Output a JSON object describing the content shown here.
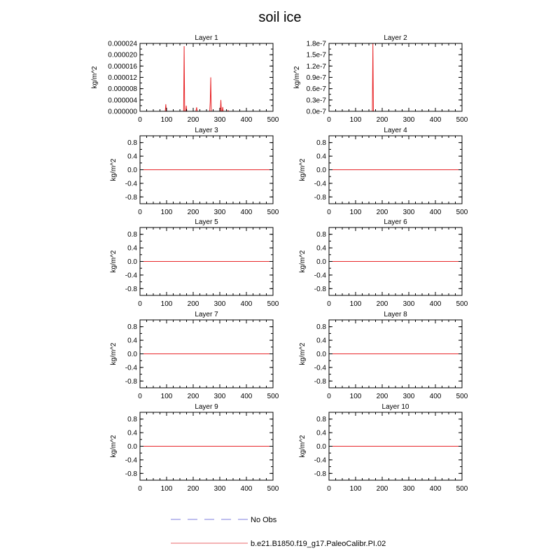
{
  "title": "soil ice",
  "ylabel": "kg/m^2",
  "legend": {
    "obs": "No Obs",
    "model": "b.e21.B1850.f19_g17.PaleoCalibr.PI.02"
  },
  "colors": {
    "model": "#e8272a",
    "obs": "#a8a8e8",
    "axis": "#000000"
  },
  "chart_data": [
    {
      "type": "line",
      "title": "Layer 1",
      "ylabel": "kg/m^2",
      "xlim": [
        0,
        500
      ],
      "ylim": [
        0,
        2.4e-05
      ],
      "xticks": [
        "0",
        "100",
        "200",
        "300",
        "400",
        "500"
      ],
      "yticks": [
        "0.000000",
        "0.000004",
        "0.000008",
        "0.000012",
        "0.000016",
        "0.000020",
        "0.000024"
      ],
      "series": [
        {
          "name": "b.e21.B1850.f19_g17.PaleoCalibr.PI.02",
          "x": [
            0,
            95,
            97,
            99,
            101,
            160,
            164,
            166,
            168,
            172,
            174,
            176,
            210,
            213,
            215,
            262,
            264,
            266,
            268,
            270,
            300,
            302,
            304,
            306,
            309,
            311,
            313,
            330,
            331,
            333,
            500
          ],
          "y": [
            0,
            0,
            2.5e-06,
            0,
            0,
            0,
            0,
            2.3e-05,
            0,
            0,
            2e-06,
            0,
            0,
            1.4e-06,
            0,
            0,
            3.3e-06,
            1.2e-05,
            0,
            0,
            0,
            0,
            4e-06,
            0,
            0,
            1.5e-06,
            0,
            0,
            3e-07,
            0,
            0
          ]
        }
      ]
    },
    {
      "type": "line",
      "title": "Layer 2",
      "ylabel": "kg/m^2",
      "xlim": [
        0,
        500
      ],
      "ylim": [
        0,
        1.8e-07
      ],
      "xticks": [
        "0",
        "100",
        "200",
        "300",
        "400",
        "500"
      ],
      "yticks": [
        "0.0e-7",
        "0.3e-7",
        "0.6e-7",
        "0.9e-7",
        "1.2e-7",
        "1.5e-7",
        "1.8e-7"
      ],
      "series": [
        {
          "name": "b.e21.B1850.f19_g17.PaleoCalibr.PI.02",
          "x": [
            0,
            163,
            165,
            167,
            500
          ],
          "y": [
            0,
            0,
            1.8e-07,
            0,
            0
          ]
        }
      ]
    },
    {
      "type": "line",
      "title": "Layer 3",
      "ylabel": "kg/m^2",
      "xlim": [
        0,
        500
      ],
      "ylim": [
        -1,
        1
      ],
      "xticks": [
        "0",
        "100",
        "200",
        "300",
        "400",
        "500"
      ],
      "yticks": [
        "-0.8",
        "-0.4",
        "0.0",
        "0.4",
        "0.8"
      ],
      "series": [
        {
          "name": "b.e21.B1850.f19_g17.PaleoCalibr.PI.02",
          "x": [
            0,
            500
          ],
          "y": [
            0,
            0
          ]
        }
      ]
    },
    {
      "type": "line",
      "title": "Layer 4",
      "ylabel": "kg/m^2",
      "xlim": [
        0,
        500
      ],
      "ylim": [
        -1,
        1
      ],
      "xticks": [
        "0",
        "100",
        "200",
        "300",
        "400",
        "500"
      ],
      "yticks": [
        "-0.8",
        "-0.4",
        "0.0",
        "0.4",
        "0.8"
      ],
      "series": [
        {
          "name": "b.e21.B1850.f19_g17.PaleoCalibr.PI.02",
          "x": [
            0,
            500
          ],
          "y": [
            0,
            0
          ]
        }
      ]
    },
    {
      "type": "line",
      "title": "Layer 5",
      "ylabel": "kg/m^2",
      "xlim": [
        0,
        500
      ],
      "ylim": [
        -1,
        1
      ],
      "xticks": [
        "0",
        "100",
        "200",
        "300",
        "400",
        "500"
      ],
      "yticks": [
        "-0.8",
        "-0.4",
        "0.0",
        "0.4",
        "0.8"
      ],
      "series": [
        {
          "name": "b.e21.B1850.f19_g17.PaleoCalibr.PI.02",
          "x": [
            0,
            500
          ],
          "y": [
            0,
            0
          ]
        }
      ]
    },
    {
      "type": "line",
      "title": "Layer 6",
      "ylabel": "kg/m^2",
      "xlim": [
        0,
        500
      ],
      "ylim": [
        -1,
        1
      ],
      "xticks": [
        "0",
        "100",
        "200",
        "300",
        "400",
        "500"
      ],
      "yticks": [
        "-0.8",
        "-0.4",
        "0.0",
        "0.4",
        "0.8"
      ],
      "series": [
        {
          "name": "b.e21.B1850.f19_g17.PaleoCalibr.PI.02",
          "x": [
            0,
            500
          ],
          "y": [
            0,
            0
          ]
        }
      ]
    },
    {
      "type": "line",
      "title": "Layer 7",
      "ylabel": "kg/m^2",
      "xlim": [
        0,
        500
      ],
      "ylim": [
        -1,
        1
      ],
      "xticks": [
        "0",
        "100",
        "200",
        "300",
        "400",
        "500"
      ],
      "yticks": [
        "-0.8",
        "-0.4",
        "0.0",
        "0.4",
        "0.8"
      ],
      "series": [
        {
          "name": "b.e21.B1850.f19_g17.PaleoCalibr.PI.02",
          "x": [
            0,
            500
          ],
          "y": [
            0,
            0
          ]
        }
      ]
    },
    {
      "type": "line",
      "title": "Layer 8",
      "ylabel": "kg/m^2",
      "xlim": [
        0,
        500
      ],
      "ylim": [
        -1,
        1
      ],
      "xticks": [
        "0",
        "100",
        "200",
        "300",
        "400",
        "500"
      ],
      "yticks": [
        "-0.8",
        "-0.4",
        "0.0",
        "0.4",
        "0.8"
      ],
      "series": [
        {
          "name": "b.e21.B1850.f19_g17.PaleoCalibr.PI.02",
          "x": [
            0,
            500
          ],
          "y": [
            0,
            0
          ]
        }
      ]
    },
    {
      "type": "line",
      "title": "Layer 9",
      "ylabel": "kg/m^2",
      "xlim": [
        0,
        500
      ],
      "ylim": [
        -1,
        1
      ],
      "xticks": [
        "0",
        "100",
        "200",
        "300",
        "400",
        "500"
      ],
      "yticks": [
        "-0.8",
        "-0.4",
        "0.0",
        "0.4",
        "0.8"
      ],
      "series": [
        {
          "name": "b.e21.B1850.f19_g17.PaleoCalibr.PI.02",
          "x": [
            0,
            500
          ],
          "y": [
            0,
            0
          ]
        }
      ]
    },
    {
      "type": "line",
      "title": "Layer 10",
      "ylabel": "kg/m^2",
      "xlim": [
        0,
        500
      ],
      "ylim": [
        -1,
        1
      ],
      "xticks": [
        "0",
        "100",
        "200",
        "300",
        "400",
        "500"
      ],
      "yticks": [
        "-0.8",
        "-0.4",
        "0.0",
        "0.4",
        "0.8"
      ],
      "series": [
        {
          "name": "b.e21.B1850.f19_g17.PaleoCalibr.PI.02",
          "x": [
            0,
            500
          ],
          "y": [
            0,
            0
          ]
        }
      ]
    }
  ]
}
